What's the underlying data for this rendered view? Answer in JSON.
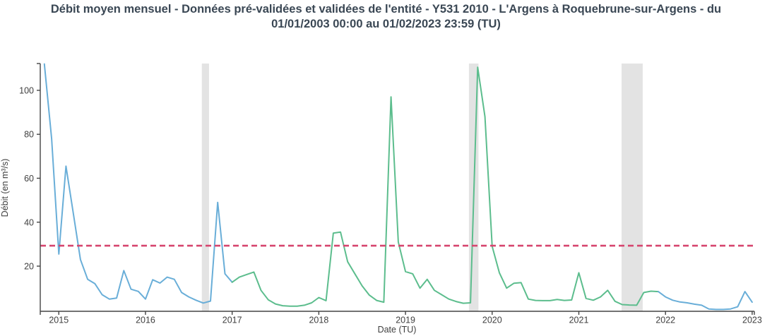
{
  "title": {
    "lines": [
      "Débit moyen mensuel - Données pré-validées et validées de l'entité - Y531 2010 - L'Argens à Roquebrune-sur-Argens - du",
      "01/01/2003 00:00 au 01/02/2023 23:59 (TU)"
    ]
  },
  "chart_data": {
    "type": "line",
    "title": "Débit moyen mensuel - Données pré-validées et validées de l'entité - Y531 2010 - L'Argens à Roquebrune-sur-Argens - du 01/01/2003 00:00 au 01/02/2023 23:59 (TU)",
    "xlabel": "Date (TU)",
    "ylabel": "Débit (en m³/s)",
    "xlim": [
      2014.786,
      2023.025
    ],
    "ylim": [
      -0.55,
      112.2
    ],
    "xticks": [
      2015,
      2016,
      2017,
      2018,
      2019,
      2020,
      2021,
      2022,
      2023
    ],
    "yticks": [
      20,
      40,
      60,
      80,
      100
    ],
    "grid": false,
    "legend": "none",
    "threshold": {
      "value": 29.3,
      "color": "#d6456f",
      "style": "dashed"
    },
    "bands": {
      "color": "#e3e3e3",
      "ranges": [
        [
          2016.65,
          2016.733
        ],
        [
          2019.732,
          2019.842
        ],
        [
          2021.493,
          2021.737
        ]
      ]
    },
    "series": [
      {
        "name": "donnees-pre-validees-debut",
        "color": "#69aed8",
        "points": [
          [
            2014.833,
            112
          ],
          [
            2014.917,
            78
          ],
          [
            2015.0,
            25.5
          ],
          [
            2015.083,
            65.5
          ],
          [
            2015.167,
            44
          ],
          [
            2015.25,
            23
          ],
          [
            2015.333,
            14
          ],
          [
            2015.417,
            12
          ],
          [
            2015.5,
            7
          ],
          [
            2015.583,
            5
          ],
          [
            2015.667,
            5.5
          ],
          [
            2015.75,
            18
          ],
          [
            2015.833,
            9.5
          ],
          [
            2015.917,
            8.5
          ],
          [
            2016.0,
            5
          ],
          [
            2016.083,
            13.8
          ],
          [
            2016.167,
            12.3
          ],
          [
            2016.25,
            15
          ],
          [
            2016.333,
            14
          ],
          [
            2016.417,
            8
          ],
          [
            2016.5,
            6
          ],
          [
            2016.583,
            4.5
          ],
          [
            2016.667,
            3.2
          ],
          [
            2016.75,
            4.1
          ],
          [
            2016.833,
            49
          ],
          [
            2016.917,
            16.5
          ],
          [
            2017.0,
            12.7
          ]
        ]
      },
      {
        "name": "donnees-validees",
        "color": "#5cbd8d",
        "points": [
          [
            2017.0,
            12.7
          ],
          [
            2017.083,
            15
          ],
          [
            2017.167,
            16.2
          ],
          [
            2017.25,
            17.3
          ],
          [
            2017.333,
            9
          ],
          [
            2017.417,
            4.7
          ],
          [
            2017.5,
            2.8
          ],
          [
            2017.583,
            2.0
          ],
          [
            2017.667,
            1.8
          ],
          [
            2017.75,
            1.8
          ],
          [
            2017.833,
            2.2
          ],
          [
            2017.917,
            3.3
          ],
          [
            2018.0,
            5.7
          ],
          [
            2018.083,
            4.3
          ],
          [
            2018.167,
            35
          ],
          [
            2018.25,
            35.5
          ],
          [
            2018.333,
            22
          ],
          [
            2018.417,
            16.4
          ],
          [
            2018.5,
            11
          ],
          [
            2018.583,
            6.8
          ],
          [
            2018.667,
            4.4
          ],
          [
            2018.75,
            3.6
          ],
          [
            2018.833,
            97
          ],
          [
            2018.917,
            31
          ],
          [
            2019.0,
            17.5
          ],
          [
            2019.083,
            16.5
          ],
          [
            2019.167,
            10
          ],
          [
            2019.25,
            14
          ],
          [
            2019.333,
            9
          ],
          [
            2019.417,
            7
          ],
          [
            2019.5,
            5
          ],
          [
            2019.583,
            3.9
          ],
          [
            2019.667,
            3.1
          ],
          [
            2019.75,
            3.3
          ],
          [
            2019.833,
            110.5
          ],
          [
            2019.917,
            88
          ],
          [
            2020.0,
            29
          ],
          [
            2020.083,
            17
          ],
          [
            2020.167,
            10
          ],
          [
            2020.25,
            12.2
          ],
          [
            2020.333,
            12.5
          ],
          [
            2020.417,
            5
          ],
          [
            2020.5,
            4.4
          ],
          [
            2020.583,
            4.3
          ],
          [
            2020.667,
            4.3
          ],
          [
            2020.75,
            4.8
          ],
          [
            2020.833,
            4.4
          ],
          [
            2020.917,
            4.6
          ],
          [
            2021.0,
            17
          ],
          [
            2021.083,
            5.3
          ],
          [
            2021.167,
            4.5
          ],
          [
            2021.25,
            6
          ],
          [
            2021.333,
            9
          ],
          [
            2021.417,
            4
          ],
          [
            2021.5,
            2.5
          ],
          [
            2021.583,
            2.3
          ],
          [
            2021.667,
            2.2
          ],
          [
            2021.75,
            8
          ],
          [
            2021.833,
            8.6
          ],
          [
            2021.917,
            8.4
          ]
        ]
      },
      {
        "name": "donnees-pre-validees-fin",
        "color": "#69aed8",
        "points": [
          [
            2021.917,
            8.4
          ],
          [
            2022.0,
            6
          ],
          [
            2022.083,
            4.5
          ],
          [
            2022.167,
            3.7
          ],
          [
            2022.25,
            3.3
          ],
          [
            2022.333,
            2.7
          ],
          [
            2022.417,
            2.2
          ],
          [
            2022.5,
            0.5
          ],
          [
            2022.583,
            0.3
          ],
          [
            2022.667,
            0.3
          ],
          [
            2022.75,
            0.5
          ],
          [
            2022.833,
            1.5
          ],
          [
            2022.917,
            8.4
          ],
          [
            2023.0,
            3.6
          ]
        ]
      }
    ]
  }
}
